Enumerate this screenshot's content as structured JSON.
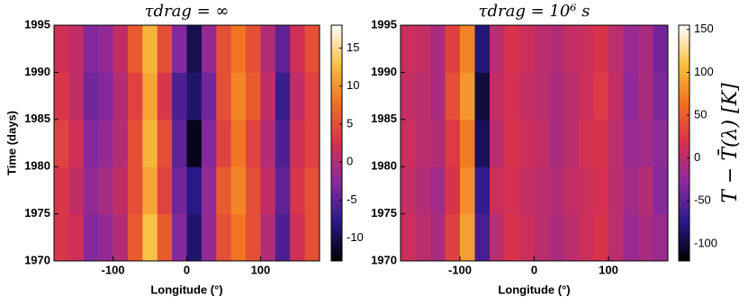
{
  "chart_data": [
    {
      "type": "heatmap",
      "title": "τdrag = ∞",
      "xlabel": "Longitude (°)",
      "ylabel": "Time (days)",
      "xlim": [
        -180,
        180
      ],
      "xticks": [
        -100,
        0,
        100
      ],
      "ylim": [
        1970,
        1995
      ],
      "yticks": [
        1970,
        1975,
        1980,
        1985,
        1990,
        1995
      ],
      "clim": [
        -13,
        18
      ],
      "cticks": [
        -10,
        -5,
        0,
        5,
        10,
        15
      ],
      "colormap": [
        "#000000",
        "#2a1a8a",
        "#8a2a9e",
        "#d8304e",
        "#f07020",
        "#f8c040",
        "#ffffff"
      ],
      "x": [
        -170,
        -150,
        -130,
        -110,
        -90,
        -70,
        -50,
        -30,
        -10,
        10,
        30,
        50,
        70,
        90,
        110,
        130,
        150,
        170
      ],
      "y": [
        1972.5,
        1977.5,
        1982.5,
        1987.5,
        1992.5
      ],
      "z": [
        [
          3,
          2,
          -3,
          -2,
          0,
          6,
          13,
          6,
          -3,
          -9,
          -2,
          5,
          8,
          5,
          0,
          -6,
          2,
          5
        ],
        [
          3,
          1,
          -2,
          -1,
          1,
          5,
          11,
          4,
          -4,
          -8,
          -2,
          6,
          9,
          5,
          1,
          -5,
          3,
          5
        ],
        [
          4,
          2,
          -3,
          -2,
          0,
          5,
          12,
          5,
          -5,
          -12,
          -3,
          4,
          8,
          4,
          0,
          -6,
          2,
          4
        ],
        [
          3,
          1,
          -4,
          -3,
          0,
          4,
          11,
          3,
          -6,
          -9,
          -4,
          5,
          9,
          6,
          1,
          -7,
          1,
          4
        ],
        [
          2,
          1,
          -3,
          -2,
          1,
          6,
          12,
          5,
          -3,
          -10,
          -2,
          5,
          8,
          5,
          0,
          -5,
          2,
          5
        ]
      ]
    },
    {
      "type": "heatmap",
      "title": "τdrag = 10⁶ s",
      "xlabel": "Longitude (°)",
      "colorbar_label": "T − T̄(λ) [K]",
      "xlim": [
        -180,
        180
      ],
      "xticks": [
        -100,
        0,
        100
      ],
      "ylim": [
        1970,
        1995
      ],
      "yticks": [
        1970,
        1975,
        1980,
        1985,
        1990,
        1995
      ],
      "clim": [
        -120,
        155
      ],
      "cticks": [
        -100,
        -50,
        0,
        50,
        100,
        150
      ],
      "colormap": [
        "#000000",
        "#2a1a8a",
        "#8a2a9e",
        "#d8304e",
        "#f07020",
        "#f8c040",
        "#ffffff"
      ],
      "x": [
        -170,
        -150,
        -130,
        -110,
        -90,
        -70,
        -50,
        -30,
        -10,
        10,
        30,
        50,
        70,
        90,
        110,
        130,
        150,
        170
      ],
      "y": [
        1972.5,
        1977.5,
        1982.5,
        1987.5,
        1992.5
      ],
      "z": [
        [
          10,
          0,
          -10,
          30,
          90,
          -60,
          0,
          20,
          10,
          0,
          -10,
          0,
          10,
          20,
          0,
          -20,
          -10,
          -20
        ],
        [
          5,
          -5,
          -15,
          20,
          80,
          -70,
          10,
          15,
          5,
          0,
          -5,
          5,
          10,
          15,
          0,
          -15,
          -5,
          -30
        ],
        [
          10,
          0,
          -5,
          25,
          70,
          -90,
          0,
          20,
          10,
          5,
          -10,
          0,
          15,
          20,
          0,
          -20,
          -15,
          -25
        ],
        [
          5,
          0,
          -10,
          40,
          85,
          -100,
          5,
          15,
          5,
          0,
          -10,
          0,
          10,
          25,
          5,
          -25,
          -10,
          -35
        ],
        [
          10,
          5,
          -10,
          30,
          75,
          -80,
          0,
          20,
          10,
          0,
          -5,
          5,
          10,
          20,
          0,
          -20,
          -10,
          -40
        ]
      ]
    }
  ]
}
